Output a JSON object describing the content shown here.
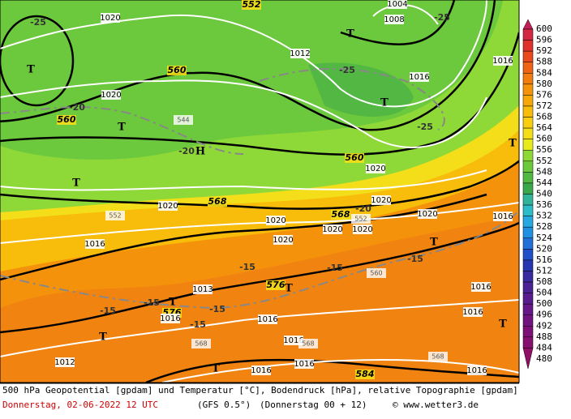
{
  "colorbar": {
    "levels": [
      600,
      596,
      592,
      588,
      584,
      580,
      576,
      572,
      568,
      564,
      560,
      556,
      552,
      548,
      544,
      540,
      536,
      532,
      528,
      524,
      520,
      516,
      512,
      508,
      504,
      500,
      496,
      492,
      488,
      484,
      480
    ],
    "colors": [
      "#c41e5a",
      "#d22842",
      "#e0322c",
      "#e84a1e",
      "#ee6414",
      "#f27c10",
      "#f5920c",
      "#f7a808",
      "#f8bc0a",
      "#f8ce10",
      "#f4de1a",
      "#e8ea1e",
      "#8ed838",
      "#6cc83c",
      "#52b843",
      "#3aa84a",
      "#32b49a",
      "#2ebcc8",
      "#26a8e0",
      "#2090e0",
      "#2070d8",
      "#2050c8",
      "#2636b0",
      "#3a2aa0",
      "#4a2296",
      "#581c8e",
      "#661888",
      "#721480",
      "#7c1078",
      "#861070",
      "#901068"
    ]
  },
  "geopotential_labels": [
    "552",
    "560",
    "560",
    "560",
    "568",
    "568",
    "576",
    "576",
    "584"
  ],
  "pressure_labels": [
    "1020",
    "1012",
    "1008",
    "1004",
    "1016",
    "1020",
    "1020",
    "1020",
    "1020",
    "1020",
    "1020",
    "1020",
    "1020",
    "1020",
    "1016",
    "1016",
    "1016",
    "1016",
    "1013",
    "1016",
    "1016",
    "1016",
    "1016",
    "1016",
    "1012",
    "1016",
    "1016"
  ],
  "temperature_labels": [
    "-25",
    "-25",
    "-25",
    "-25",
    "-20",
    "-20",
    "-20",
    "-15",
    "-15",
    "-15",
    "-15",
    "-15",
    "-15",
    "-15"
  ],
  "pressure_centers": [
    "T",
    "T",
    "T",
    "T",
    "T",
    "T",
    "T",
    "T",
    "T",
    "T",
    "T",
    "T",
    "H"
  ],
  "thickness_labels": [
    "544",
    "552",
    "552",
    "560",
    "568",
    "568",
    "568"
  ],
  "footer": {
    "title": "500 hPa Geopotential [gpdam] und Temperatur [°C], Bodendruck [hPa], relative Topographie [gpdam]",
    "date": "Donnerstag, 02-06-2022  12 UTC",
    "model": "(GFS 0.5°)",
    "run": "(Donnerstag 00 + 12)",
    "credit": "© www.wetter3.de"
  }
}
